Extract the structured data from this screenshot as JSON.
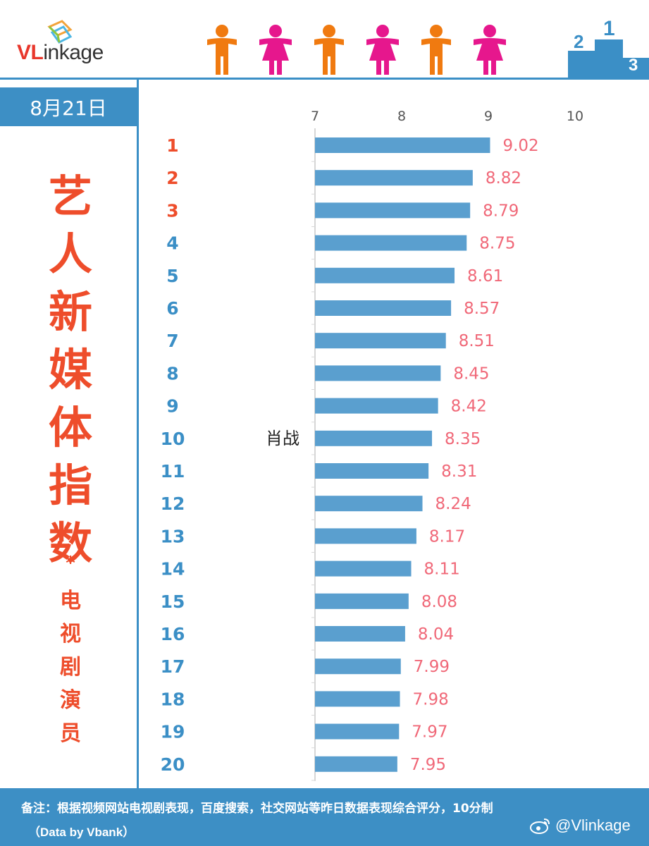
{
  "header": {
    "logo": {
      "prefix": "VL",
      "suffix": "inkage"
    },
    "icons": [
      "male-person-icon",
      "female-person-icon",
      "male-person-icon",
      "female-person-icon",
      "male-person-icon",
      "female-person-icon"
    ],
    "podium_icon": "podium-icon",
    "podium_digits": [
      "2",
      "1",
      "3"
    ]
  },
  "date": "8月21日",
  "title": [
    "艺",
    "人",
    "新",
    "媒",
    "体",
    "指",
    "数"
  ],
  "title_star": "*",
  "subtitle": [
    "电",
    "视",
    "剧",
    "演",
    "员"
  ],
  "chart_data": {
    "type": "bar",
    "orientation": "horizontal",
    "categories": [
      "1",
      "2",
      "3",
      "4",
      "5",
      "6",
      "7",
      "8",
      "9",
      "10",
      "11",
      "12",
      "13",
      "14",
      "15",
      "16",
      "17",
      "18",
      "19",
      "20"
    ],
    "values": [
      9.02,
      8.82,
      8.79,
      8.75,
      8.61,
      8.57,
      8.51,
      8.45,
      8.42,
      8.35,
      8.31,
      8.24,
      8.17,
      8.11,
      8.08,
      8.04,
      7.99,
      7.98,
      7.97,
      7.95
    ],
    "value_labels": [
      "9.02",
      "8.82",
      "8.79",
      "8.75",
      "8.61",
      "8.57",
      "8.51",
      "8.45",
      "8.42",
      "8.35",
      "8.31",
      "8.24",
      "8.17",
      "8.11",
      "8.08",
      "8.04",
      "7.99",
      "7.98",
      "7.97",
      "7.95"
    ],
    "names": [
      "",
      "",
      "",
      "",
      "",
      "",
      "",
      "",
      "",
      "肖战",
      "",
      "",
      "",
      "",
      "",
      "",
      "",
      "",
      "",
      ""
    ],
    "xlim": [
      7,
      10
    ],
    "xticks": [
      7,
      8,
      9,
      10
    ],
    "axis_position": "top",
    "grid": false,
    "rank_colors": {
      "top3": "#ee4d2b",
      "rest": "#3b8fc6"
    },
    "bar_color": "#5a9fcf",
    "value_label_color": "#f06878"
  },
  "footer": {
    "note": "备注：根据视频网站电视剧表现，百度搜索，社交网站等昨日数据表现综合评分，10分制",
    "source": "（Data by Vbank）",
    "watermark": "@Vlinkage",
    "watermark_icon": "weibo-icon"
  }
}
